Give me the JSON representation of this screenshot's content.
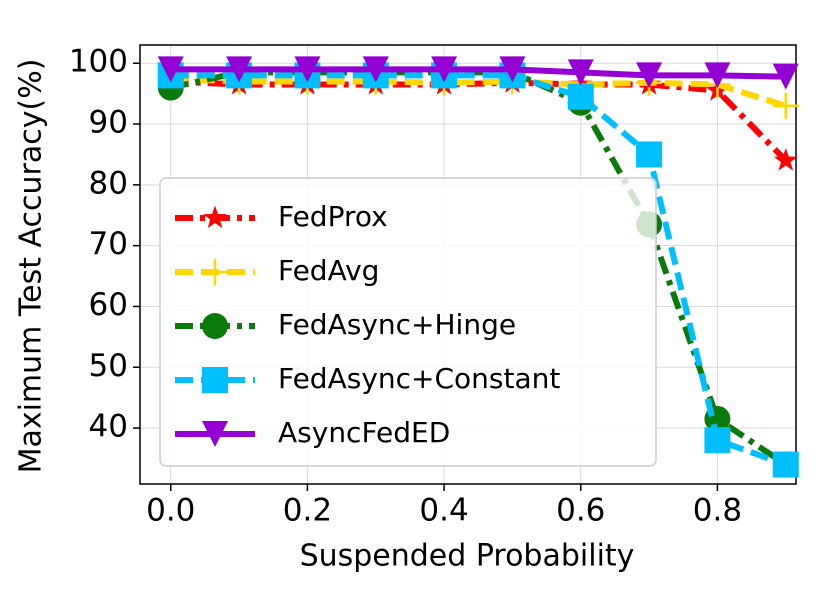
{
  "chart_data": {
    "type": "line",
    "xlabel": "Suspended Probability",
    "ylabel": "Maximum Test Accuracy(%)",
    "x": [
      0,
      0.1,
      0.2,
      0.3,
      0.4,
      0.5,
      0.6,
      0.7,
      0.8,
      0.9
    ],
    "series": [
      {
        "name": "FedProx",
        "color": "#ff0000",
        "marker": "star",
        "dash": "dashdot",
        "values": [
          97,
          96.5,
          96.5,
          96.5,
          96.5,
          96.8,
          96.5,
          96.5,
          95.5,
          84
        ]
      },
      {
        "name": "FedAvg",
        "color": "#ffd700",
        "marker": "plus",
        "dash": "dashed",
        "values": [
          97.5,
          97,
          97,
          97,
          96.8,
          97,
          96.5,
          96.8,
          96.5,
          93
        ]
      },
      {
        "name": "FedAsync+Hinge",
        "color": "#0a7a0a",
        "marker": "circle",
        "dash": "dashdot",
        "values": [
          96,
          98.5,
          98.5,
          98.5,
          98.5,
          98.5,
          93.5,
          73.5,
          41.5,
          34
        ]
      },
      {
        "name": "FedAsync+Constant",
        "color": "#00bfff",
        "marker": "square",
        "dash": "dashed",
        "values": [
          98,
          98,
          98,
          98,
          98,
          98,
          94.5,
          85,
          38,
          34
        ]
      },
      {
        "name": "AsyncFedED",
        "color": "#9400d3",
        "marker": "triangle-down",
        "dash": "solid",
        "values": [
          99,
          99,
          99,
          99,
          99,
          99,
          98.5,
          98,
          98,
          97.8
        ]
      }
    ],
    "xlim": [
      -0.045,
      0.915
    ],
    "xticks": [
      {
        "value": 0,
        "label": "0.0"
      },
      0.2,
      0.4,
      0.6,
      0.8
    ],
    "ylim": [
      30.8,
      103
    ],
    "yticks": [
      40,
      50,
      60,
      70,
      80,
      90,
      100
    ],
    "grid": true,
    "legend": "lower left"
  }
}
